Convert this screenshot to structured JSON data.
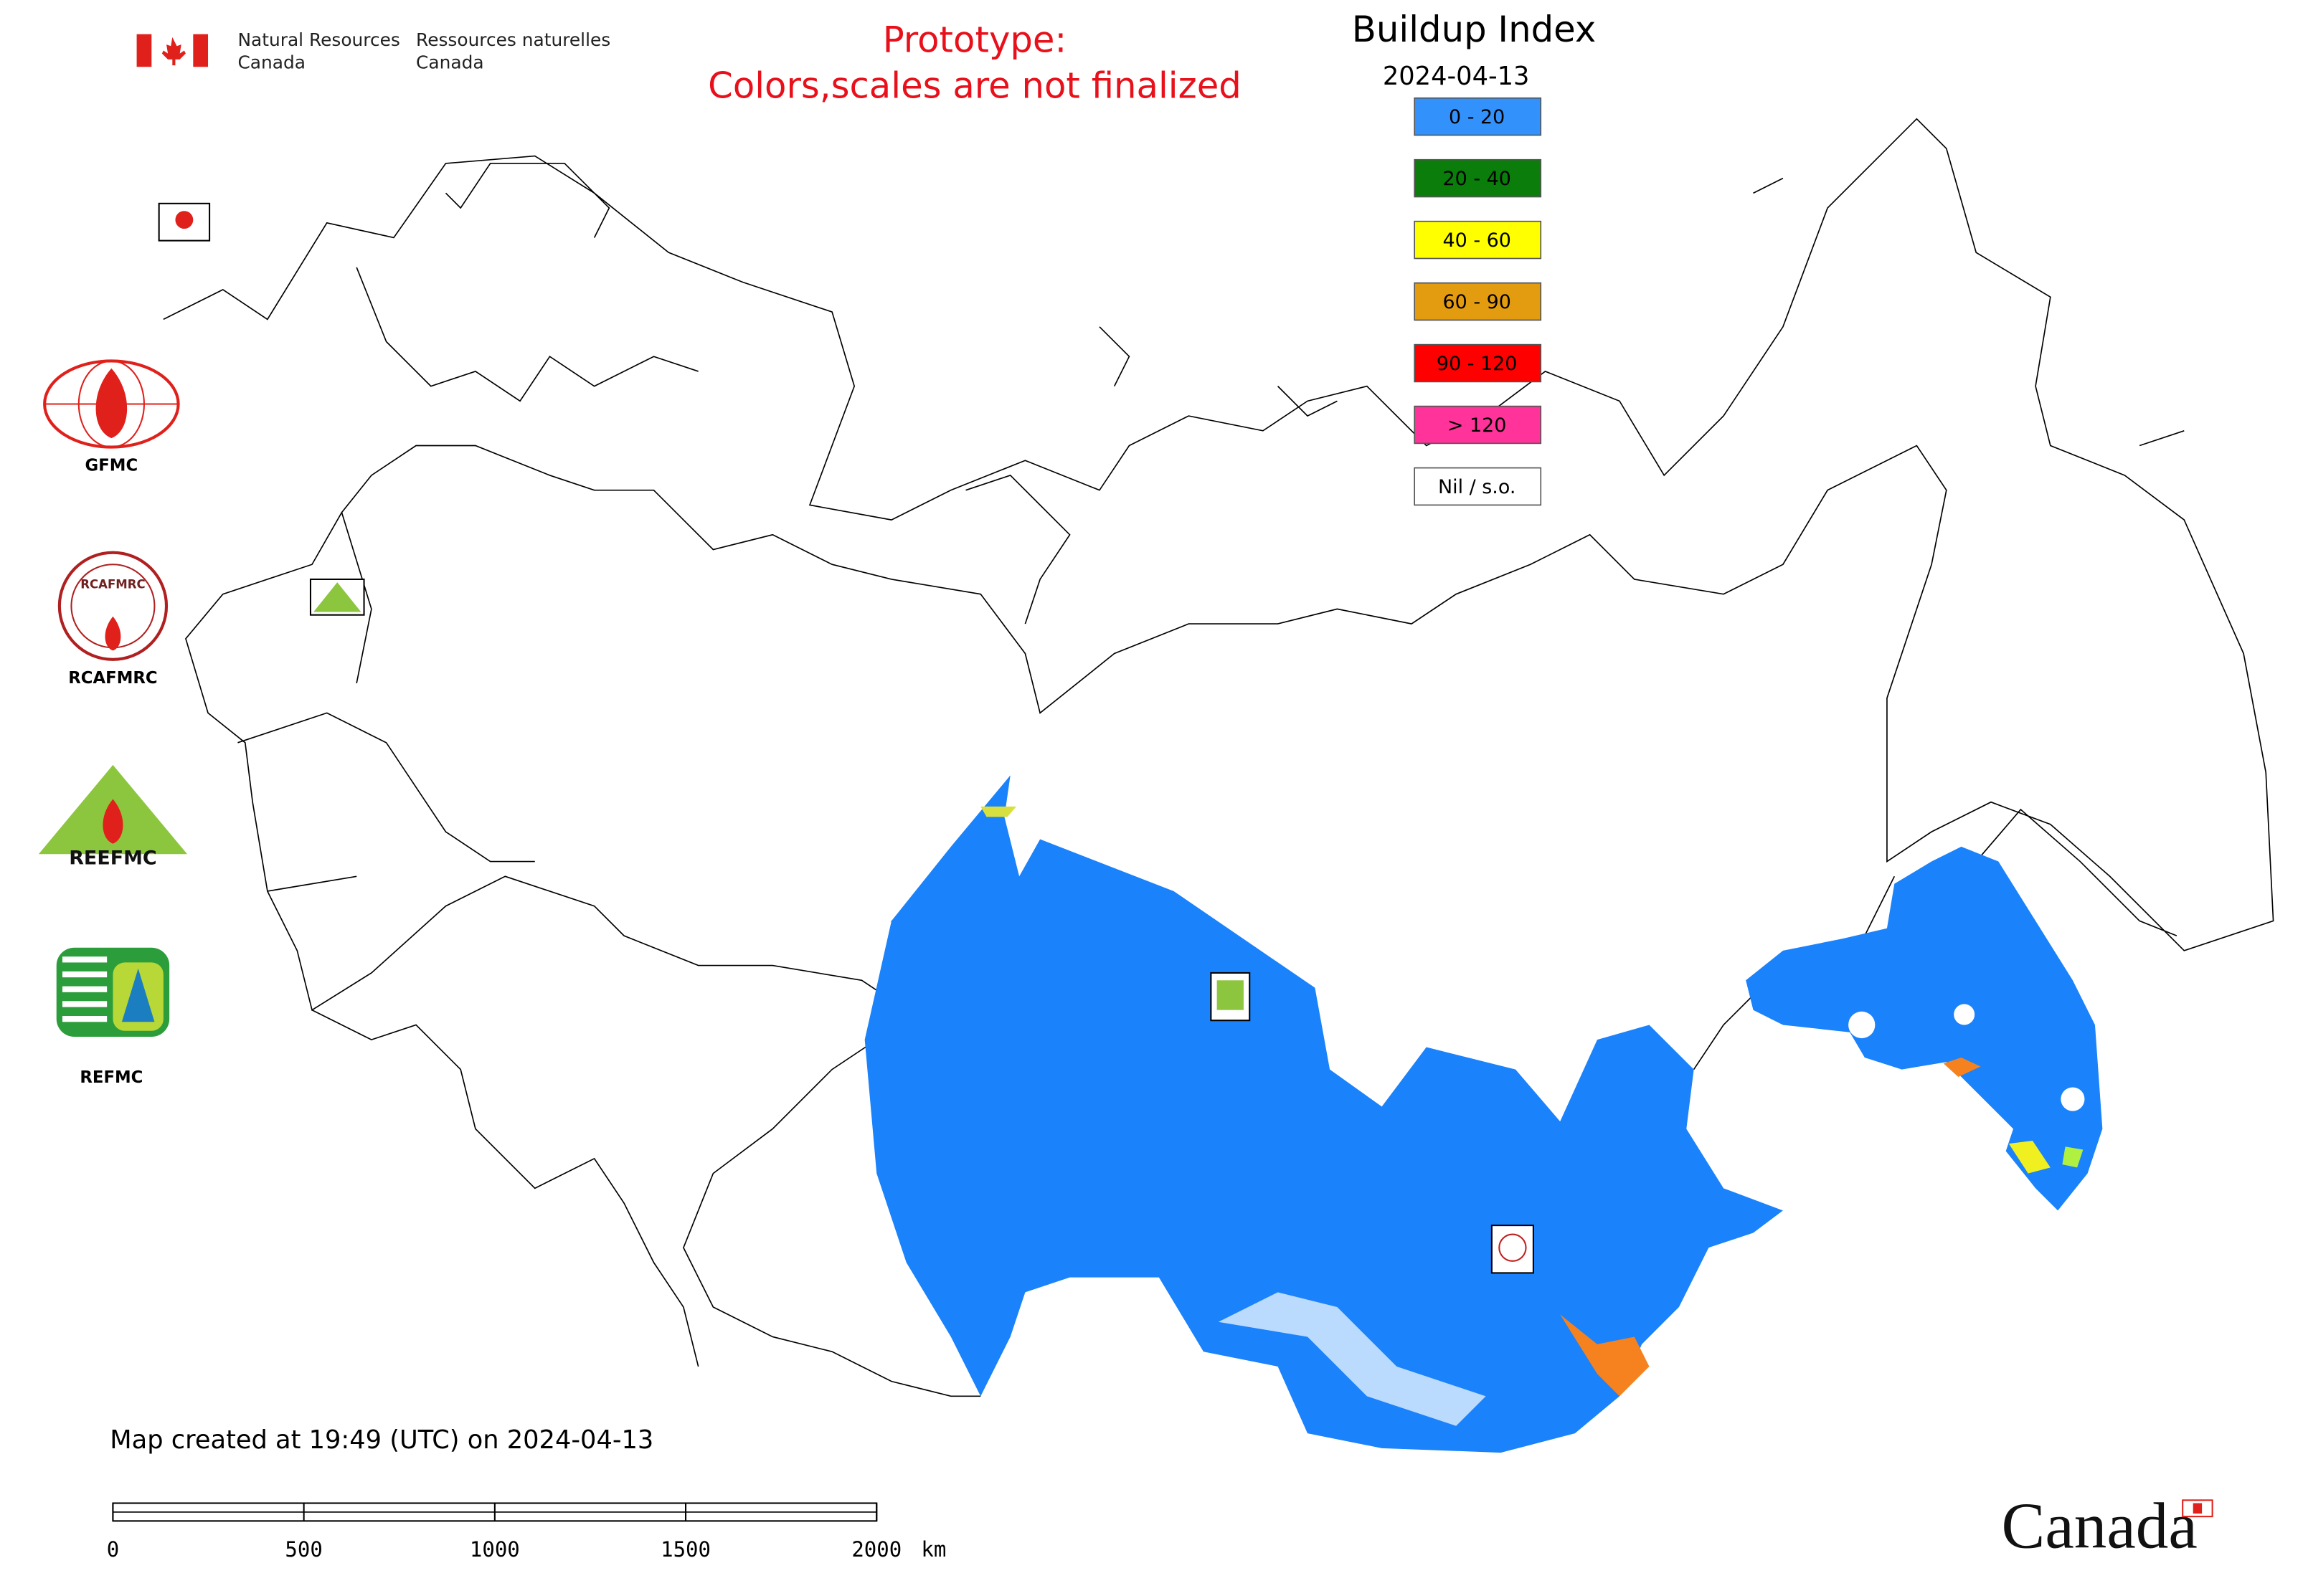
{
  "header": {
    "agency_en": [
      "Natural Resources",
      "Canada"
    ],
    "agency_fr": [
      "Ressources naturelles",
      "Canada"
    ],
    "notice": [
      "Prototype:",
      "Colors,scales are not finalized"
    ]
  },
  "legend": {
    "title": "Buildup Index",
    "date": "2024-04-13",
    "items": [
      {
        "label": "0 - 20",
        "color": "#3391fb"
      },
      {
        "label": "20 - 40",
        "color": "#0a7d0a"
      },
      {
        "label": "40 - 60",
        "color": "#ffff00"
      },
      {
        "label": "60 - 90",
        "color": "#e39b10"
      },
      {
        "label": "90 - 120",
        "color": "#ff0000"
      },
      {
        "label": "> 120",
        "color": "#ff3399"
      },
      {
        "label": "Nil / s.o.",
        "color": "#ffffff"
      }
    ]
  },
  "logos": {
    "gfmc": "GFMC",
    "rcafmrc": "RCAFMRC",
    "reefmc": "REEFMC",
    "refmc": "REFMC"
  },
  "footer": "Map created at 19:49 (UTC) on 2024-04-13",
  "scale_bar": {
    "ticks": [
      0,
      500,
      1000,
      1500,
      2000
    ],
    "unit": "km"
  },
  "wordmark": "Canada"
}
